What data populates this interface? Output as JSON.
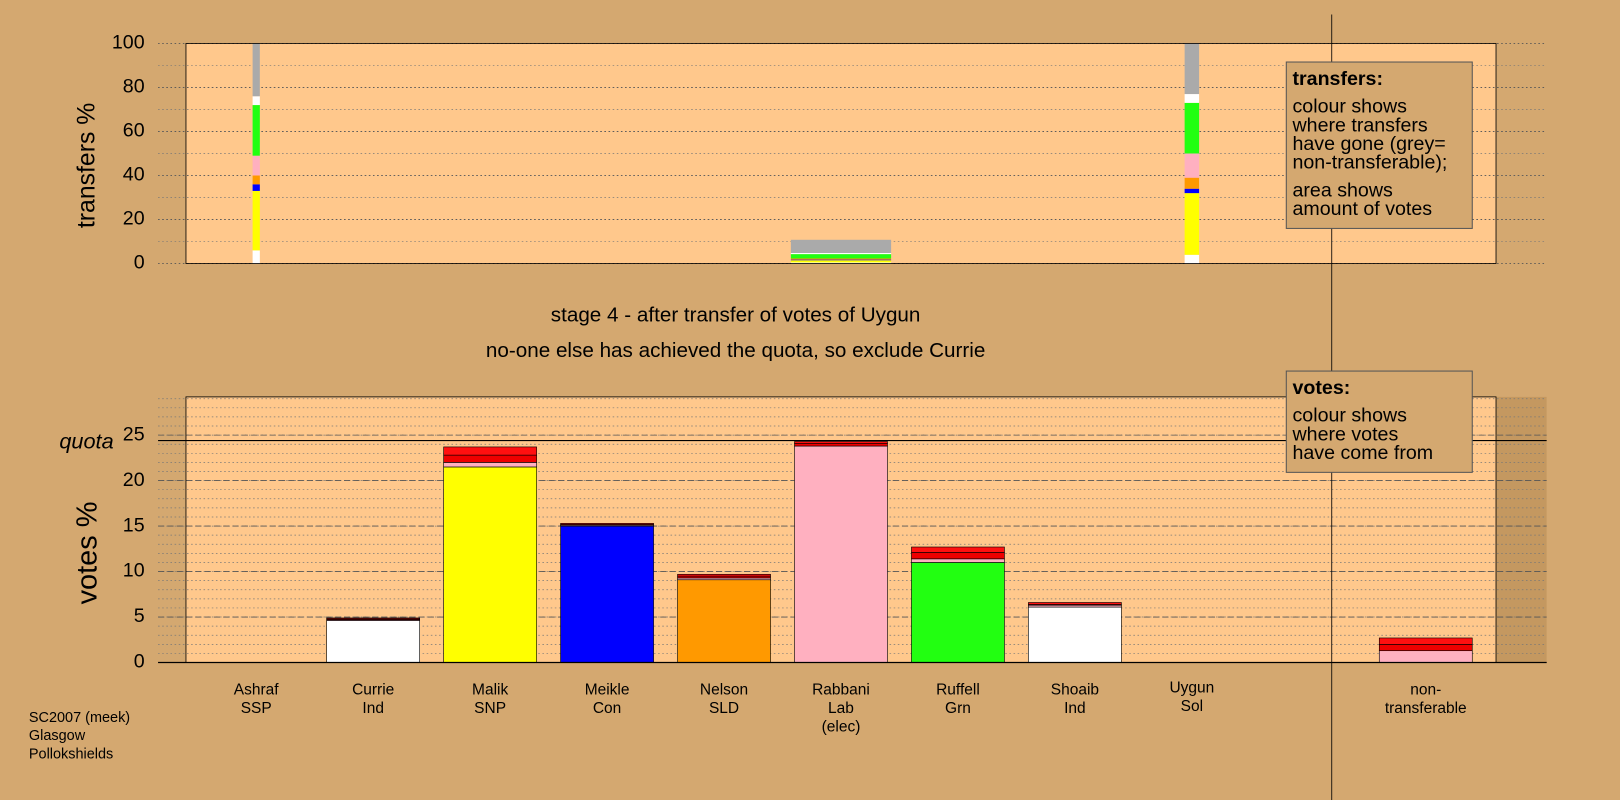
{
  "chart_data": [
    {
      "type": "bar",
      "stacked": true,
      "ylabel": "transfers %",
      "ylim": [
        0,
        100
      ],
      "yticks": [
        0,
        20,
        40,
        60,
        80,
        100
      ],
      "minor_grid": 10,
      "series": [
        {
          "color": "#ffffff",
          "values": [
            6,
            0.5,
            4
          ]
        },
        {
          "color": "#ffff00",
          "values": [
            27,
            1,
            28
          ]
        },
        {
          "color": "#0000ff",
          "values": [
            3,
            0.3,
            2
          ]
        },
        {
          "color": "#ff9900",
          "values": [
            4,
            0.5,
            5
          ]
        },
        {
          "color": "#ffb0c0",
          "values": [
            9,
            null,
            11
          ]
        },
        {
          "color": "#22ff11",
          "values": [
            23,
            2,
            23
          ]
        },
        {
          "color": "#ffffff",
          "values": [
            4,
            0.5,
            4
          ]
        },
        {
          "color": "#aaaaaa",
          "values": [
            24,
            6,
            23
          ]
        }
      ],
      "legend": {
        "title": "transfers:",
        "lines": [
          "colour shows",
          "where transfers",
          "have gone (grey=",
          "non-transferable);"
        ],
        "lines2": [
          "area shows",
          "amount of votes"
        ]
      }
    },
    {
      "type": "bar",
      "stacked": true,
      "ylabel": "votes %",
      "title": "stage 4 - after transfer of votes of Uygun",
      "subtitle": "no-one else has achieved the quota, so exclude Currie",
      "ylim": [
        0,
        29.2
      ],
      "yticks": [
        0,
        5,
        10,
        15,
        20,
        25
      ],
      "minor_grid": 1,
      "quota": {
        "label": "quota",
        "value": 24.4
      },
      "categories": [
        [
          "Ashraf",
          "SSP"
        ],
        [
          "Currie",
          "Ind"
        ],
        [
          "Malik",
          "SNP"
        ],
        [
          "Meikle",
          "Con"
        ],
        [
          "Nelson",
          "SLD"
        ],
        [
          "Rabbani",
          "Lab",
          "(elec)"
        ],
        [
          "Ruffell",
          "Grn"
        ],
        [
          "Shoaib",
          "Ind"
        ],
        [
          "Uygun",
          "Sol"
        ],
        [
          "non-",
          "transferable"
        ]
      ],
      "series": [
        {
          "colors": [
            "#ffffff",
            "#ffffff",
            "#ffff00",
            "#0000ff",
            "#ff9900",
            "#ffb0c0",
            "#22ff11",
            "#ffffff",
            "#ffffff",
            "#ffb0c0"
          ],
          "values": [
            0,
            4.6,
            21.5,
            15.0,
            9.1,
            23.8,
            11.0,
            6.1,
            0,
            null
          ]
        },
        {
          "color": "#ffb0c0",
          "values": [
            null,
            0.1,
            0.5,
            0.1,
            0.2,
            null,
            0.4,
            0.2,
            null,
            1.3
          ]
        },
        {
          "color": "#ee0000",
          "values": [
            null,
            0.1,
            0.8,
            0.1,
            0.2,
            0.3,
            0.7,
            0.1,
            null,
            0.7
          ]
        },
        {
          "color": "#ff1010",
          "values": [
            null,
            0.1,
            0.9,
            0.1,
            0.2,
            0.2,
            0.6,
            0.2,
            null,
            0.7
          ]
        }
      ],
      "legend": {
        "title": "votes:",
        "lines": [
          "colour shows",
          "where votes",
          "have come from"
        ]
      }
    }
  ],
  "footer": [
    "SC2007 (meek)",
    "Glasgow",
    "Pollokshields"
  ]
}
